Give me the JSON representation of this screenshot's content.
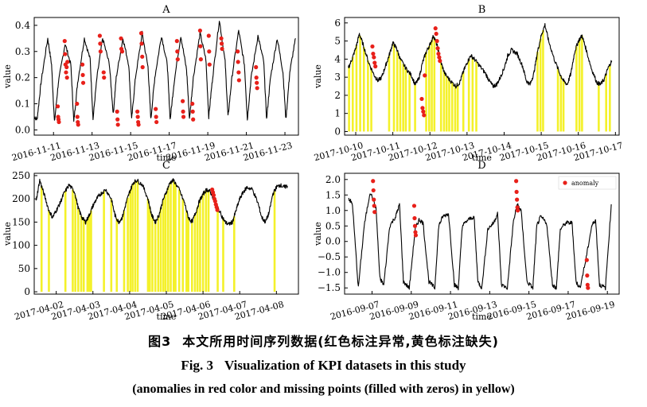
{
  "caption": {
    "cn_number": "图3",
    "cn_text": "本文所用时间序列数据(红色标注异常,黄色标注缺失)",
    "en_number": "Fig. 3",
    "en_title": "Visualization of KPI datasets in this study",
    "en_subtitle": "(anomalies in red color and missing points (filled with zeros) in yellow)"
  },
  "colors": {
    "line": "#000000",
    "anomaly": "#e8201a",
    "missing": "#f4f12a"
  },
  "chart_data": [
    {
      "type": "line",
      "title": "A",
      "xlabel": "time",
      "ylabel": "value",
      "xlim": [
        0,
        13.7
      ],
      "ylim": [
        -0.02,
        0.43
      ],
      "yticks": [
        0.0,
        0.1,
        0.2,
        0.3,
        0.4
      ],
      "ytick_labels": [
        "0.0",
        "0.1",
        "0.2",
        "0.3",
        "0.4"
      ],
      "xticks": [
        1.0,
        3.0,
        5.0,
        7.0,
        9.0,
        11.0,
        13.0
      ],
      "xtick_labels": [
        "2016-11-11",
        "2016-11-13",
        "2016-11-15",
        "2016-11-17",
        "2016-11-19",
        "2016-11-21",
        "2016-11-23"
      ],
      "series": [
        {
          "x": [
            0.0,
            0.15,
            0.35,
            0.7,
            0.9,
            1.05,
            1.25,
            1.6,
            1.9,
            2.05,
            2.25,
            2.6,
            2.9,
            3.05,
            3.25,
            3.55,
            3.9,
            4.1,
            4.25,
            4.6,
            4.9,
            5.05,
            5.25,
            5.6,
            5.9,
            6.05,
            6.25,
            6.6,
            6.9,
            7.05,
            7.25,
            7.6,
            7.9,
            8.05,
            8.25,
            8.6,
            8.9,
            9.05,
            9.25,
            9.6,
            9.9,
            10.05,
            10.25,
            10.6,
            10.9,
            11.05,
            11.25,
            11.6,
            11.9,
            12.05,
            12.25,
            12.6,
            12.9,
            13.05,
            13.25,
            13.55
          ],
          "y": [
            0.05,
            0.04,
            0.18,
            0.35,
            0.25,
            0.03,
            0.18,
            0.33,
            0.25,
            0.03,
            0.18,
            0.35,
            0.27,
            0.04,
            0.2,
            0.35,
            0.25,
            0.06,
            0.2,
            0.35,
            0.25,
            0.04,
            0.2,
            0.37,
            0.24,
            0.04,
            0.2,
            0.36,
            0.25,
            0.04,
            0.18,
            0.36,
            0.23,
            0.04,
            0.2,
            0.37,
            0.27,
            0.05,
            0.2,
            0.42,
            0.26,
            0.05,
            0.2,
            0.38,
            0.25,
            0.04,
            0.2,
            0.36,
            0.26,
            0.04,
            0.2,
            0.35,
            0.22,
            0.04,
            0.22,
            0.35
          ]
        }
      ],
      "anomalies": {
        "x": [
          1.22,
          1.24,
          1.26,
          1.28,
          1.58,
          1.6,
          1.62,
          1.65,
          1.68,
          1.7,
          1.72,
          2.22,
          2.24,
          2.26,
          2.28,
          2.5,
          2.52,
          2.54,
          3.4,
          3.42,
          3.44,
          3.6,
          3.62,
          4.3,
          4.32,
          4.34,
          4.5,
          4.52,
          4.56,
          5.35,
          5.37,
          5.39,
          5.41,
          5.55,
          5.57,
          5.6,
          5.62,
          6.3,
          6.32,
          6.34,
          7.4,
          7.42,
          7.44,
          7.7,
          7.72,
          7.74,
          8.2,
          8.22,
          8.24,
          8.6,
          8.62,
          8.64,
          9.05,
          9.07,
          9.09,
          9.7,
          9.72,
          9.74,
          10.55,
          10.57,
          10.6,
          10.62,
          11.5,
          11.52,
          11.54,
          11.56
        ],
        "y": [
          0.09,
          0.05,
          0.04,
          0.03,
          0.34,
          0.29,
          0.25,
          0.22,
          0.24,
          0.2,
          0.26,
          0.1,
          0.05,
          0.03,
          0.02,
          0.25,
          0.21,
          0.18,
          0.36,
          0.33,
          0.3,
          0.22,
          0.2,
          0.07,
          0.04,
          0.02,
          0.35,
          0.31,
          0.3,
          0.07,
          0.05,
          0.03,
          0.02,
          0.37,
          0.33,
          0.28,
          0.24,
          0.08,
          0.05,
          0.03,
          0.34,
          0.3,
          0.27,
          0.11,
          0.07,
          0.05,
          0.1,
          0.07,
          0.04,
          0.38,
          0.32,
          0.27,
          0.36,
          0.3,
          0.25,
          0.35,
          0.33,
          0.31,
          0.3,
          0.26,
          0.22,
          0.19,
          0.24,
          0.2,
          0.18,
          0.16
        ]
      },
      "missing_x": []
    },
    {
      "type": "line",
      "title": "B",
      "xlabel": "time",
      "ylabel": "value",
      "xlim": [
        -0.3,
        7.1
      ],
      "ylim": [
        -0.2,
        6.3
      ],
      "yticks": [
        0,
        1,
        2,
        3,
        4,
        5,
        6
      ],
      "ytick_labels": [
        "0",
        "1",
        "2",
        "3",
        "4",
        "5",
        "6"
      ],
      "xticks": [
        0,
        1,
        2,
        3,
        4,
        5,
        6,
        7
      ],
      "xtick_labels": [
        "2017-10-10",
        "2017-10-11",
        "2017-10-12",
        "2017-10-13",
        "2017-10-14",
        "2017-10-15",
        "2017-10-16",
        "2017-10-17"
      ],
      "series": [
        {
          "x": [
            -0.2,
            -0.1,
            0.0,
            0.1,
            0.2,
            0.35,
            0.5,
            0.6,
            0.7,
            0.8,
            0.9,
            1.0,
            1.1,
            1.2,
            1.35,
            1.5,
            1.6,
            1.7,
            1.8,
            1.9,
            2.0,
            2.1,
            2.2,
            2.3,
            2.4,
            2.55,
            2.7,
            2.8,
            2.9,
            3.0,
            3.1,
            3.2,
            3.35,
            3.5,
            3.6,
            3.7,
            3.8,
            3.9,
            4.0,
            4.1,
            4.2,
            4.35,
            4.5,
            4.6,
            4.7,
            4.8,
            4.9,
            5.0,
            5.1,
            5.2,
            5.35,
            5.5,
            5.6,
            5.7,
            5.8,
            5.9,
            6.0,
            6.1,
            6.2,
            6.35,
            6.5,
            6.6,
            6.7,
            6.8,
            6.9
          ],
          "y": [
            3.5,
            4.0,
            4.6,
            5.4,
            4.8,
            3.8,
            3.1,
            2.8,
            3.0,
            3.6,
            4.2,
            4.9,
            4.6,
            4.0,
            3.5,
            3.1,
            2.6,
            2.9,
            3.8,
            4.4,
            4.8,
            5.3,
            4.7,
            3.8,
            3.2,
            2.8,
            2.5,
            2.7,
            3.3,
            3.8,
            4.2,
            4.0,
            3.6,
            3.2,
            2.8,
            2.5,
            2.6,
            3.0,
            3.5,
            4.2,
            4.5,
            4.3,
            3.6,
            2.8,
            2.6,
            3.2,
            4.4,
            5.3,
            5.9,
            5.0,
            4.0,
            3.2,
            2.8,
            2.6,
            3.2,
            4.4,
            5.0,
            5.3,
            4.6,
            3.5,
            2.7,
            2.6,
            2.9,
            3.5,
            3.9
          ]
        }
      ],
      "anomalies": {
        "x": [
          0.45,
          0.47,
          0.49,
          0.51,
          0.53,
          1.78,
          1.8,
          1.82,
          1.84,
          1.86,
          2.15,
          2.17,
          2.19,
          2.21,
          2.23,
          2.25,
          2.27
        ],
        "y": [
          4.7,
          4.3,
          4.1,
          3.8,
          3.6,
          1.8,
          1.3,
          1.1,
          0.9,
          3.1,
          5.7,
          5.4,
          5.0,
          4.6,
          4.3,
          4.1,
          3.9
        ],
        "missing_note": ""
      },
      "missing_x": [
        -0.18,
        -0.08,
        0.02,
        0.12,
        0.22,
        0.33,
        0.42,
        0.9,
        1.03,
        1.12,
        1.2,
        1.28,
        1.35,
        1.45,
        1.6,
        1.9,
        1.98,
        2.05,
        2.12,
        2.3,
        2.38,
        2.45,
        2.52,
        2.6,
        2.68,
        2.75,
        2.9,
        3.05,
        3.15,
        3.25,
        4.9,
        4.98,
        5.05,
        5.45,
        5.53,
        5.6,
        5.95,
        6.03,
        6.1,
        6.55,
        6.75,
        6.85
      ]
    },
    {
      "type": "line",
      "title": "C",
      "xlabel": "time",
      "ylabel": "value",
      "xlim": [
        -0.6,
        6.6
      ],
      "ylim": [
        -5,
        255
      ],
      "yticks": [
        0,
        50,
        100,
        150,
        200,
        250
      ],
      "ytick_labels": [
        "0",
        "50",
        "100",
        "150",
        "200",
        "250"
      ],
      "xticks": [
        0,
        1,
        2,
        3,
        4,
        5,
        6
      ],
      "xtick_labels": [
        "2017-04-02",
        "2017-04-03",
        "2017-04-04",
        "2017-04-05",
        "2017-04-06",
        "2017-04-07",
        "2017-04-08"
      ],
      "series": [
        {
          "x": [
            -0.55,
            -0.45,
            -0.35,
            -0.2,
            -0.1,
            0.0,
            0.1,
            0.2,
            0.35,
            0.5,
            0.6,
            0.7,
            0.8,
            0.9,
            1.0,
            1.1,
            1.2,
            1.35,
            1.5,
            1.6,
            1.7,
            1.8,
            1.9,
            2.0,
            2.1,
            2.2,
            2.35,
            2.5,
            2.6,
            2.7,
            2.8,
            2.9,
            3.0,
            3.1,
            3.2,
            3.35,
            3.5,
            3.6,
            3.7,
            3.8,
            3.9,
            4.0,
            4.1,
            4.2,
            4.35,
            4.5,
            4.6,
            4.7,
            4.8,
            4.9,
            5.0,
            5.1,
            5.2,
            5.35,
            5.5,
            5.6,
            5.7,
            5.8,
            5.9,
            6.0,
            6.1,
            6.2,
            6.3
          ],
          "y": [
            195,
            240,
            215,
            175,
            160,
            175,
            190,
            210,
            230,
            215,
            180,
            160,
            150,
            165,
            185,
            200,
            210,
            220,
            200,
            165,
            150,
            160,
            190,
            215,
            235,
            240,
            230,
            200,
            165,
            150,
            165,
            195,
            215,
            235,
            240,
            220,
            190,
            160,
            150,
            170,
            195,
            210,
            220,
            215,
            190,
            165,
            150,
            145,
            150,
            175,
            200,
            215,
            225,
            220,
            190,
            160,
            150,
            170,
            210,
            225,
            230,
            225,
            228
          ]
        }
      ],
      "anomalies": {
        "x": [
          4.25,
          4.27,
          4.29,
          4.31,
          4.33,
          4.35,
          4.37,
          4.39
        ],
        "y": [
          220,
          214,
          208,
          200,
          195,
          188,
          182,
          176
        ]
      },
      "missing_x": [
        -0.4,
        -0.2,
        0.25,
        0.45,
        0.52,
        0.6,
        0.68,
        0.75,
        0.85,
        0.9,
        0.95,
        1.3,
        1.5,
        1.65,
        1.85,
        1.95,
        2.02,
        2.08,
        2.15,
        2.22,
        2.5,
        2.55,
        2.62,
        2.7,
        2.78,
        2.85,
        2.92,
        2.98,
        3.05,
        3.12,
        3.2,
        3.25,
        3.35,
        3.45,
        3.55,
        3.6,
        3.7,
        3.78,
        3.85,
        3.92,
        4.0,
        4.08,
        4.15,
        4.4,
        4.55,
        4.85,
        5.95
      ]
    },
    {
      "type": "line",
      "title": "D",
      "xlabel": "time",
      "ylabel": "value",
      "legend": {
        "label": "anomaly",
        "position": "upper-right"
      },
      "xlim": [
        -0.4,
        13.6
      ],
      "ylim": [
        -1.7,
        2.2
      ],
      "yticks": [
        -1.5,
        -1.0,
        -0.5,
        0.0,
        0.5,
        1.0,
        1.5,
        2.0
      ],
      "ytick_labels": [
        "−1.5",
        "−1.0",
        "−0.5",
        "0.0",
        "0.5",
        "1.0",
        "1.5",
        "2.0"
      ],
      "xticks": [
        1,
        3,
        5,
        7,
        9,
        11,
        13
      ],
      "xtick_labels": [
        "2016-09-07",
        "2016-09-09",
        "2016-09-11",
        "2016-09-13",
        "2016-09-15",
        "2016-09-17",
        "2016-09-19"
      ],
      "series": [
        {
          "x": [
            -0.2,
            0.0,
            0.3,
            0.6,
            0.9,
            1.2,
            1.4,
            1.6,
            1.9,
            2.2,
            2.4,
            2.6,
            2.9,
            3.2,
            3.4,
            3.6,
            3.9,
            4.2,
            4.4,
            4.6,
            4.9,
            5.2,
            5.4,
            5.6,
            5.9,
            6.2,
            6.4,
            6.6,
            6.9,
            7.2,
            7.4,
            7.6,
            7.9,
            8.2,
            8.4,
            8.6,
            8.9,
            9.2,
            9.4,
            9.6,
            9.9,
            10.2,
            10.4,
            10.6,
            10.9,
            11.2,
            11.4,
            11.6,
            11.9,
            12.2,
            12.4,
            12.6,
            12.9,
            13.2
          ],
          "y": [
            1.4,
            1.2,
            -1.5,
            0.5,
            1.6,
            1.1,
            -1.2,
            -1.4,
            0.5,
            0.8,
            1.2,
            -1.3,
            -1.5,
            0.4,
            0.7,
            0.6,
            -1.3,
            -1.5,
            0.5,
            0.8,
            0.9,
            -1.4,
            -1.5,
            0.5,
            0.7,
            0.8,
            -1.3,
            -1.5,
            0.4,
            0.6,
            0.9,
            -1.4,
            -1.5,
            0.6,
            1.2,
            1.0,
            -1.3,
            -1.5,
            0.5,
            0.8,
            0.6,
            -1.4,
            -1.5,
            0.4,
            0.6,
            0.6,
            -1.3,
            -1.5,
            -0.6,
            0.5,
            0.7,
            -1.4,
            -1.5,
            1.2
          ]
        }
      ],
      "anomalies": {
        "x": [
          1.05,
          1.07,
          1.09,
          1.11,
          1.13,
          3.15,
          3.17,
          3.19,
          3.21,
          3.23,
          8.35,
          8.37,
          8.39,
          8.41,
          8.43,
          11.95,
          11.97,
          11.99,
          12.01
        ],
        "y": [
          1.95,
          1.65,
          1.35,
          1.15,
          0.95,
          1.15,
          0.75,
          0.5,
          0.3,
          0.2,
          1.95,
          1.6,
          1.35,
          1.1,
          1.0,
          -0.6,
          -1.1,
          -1.4,
          -1.5
        ]
      },
      "missing_x": []
    }
  ]
}
